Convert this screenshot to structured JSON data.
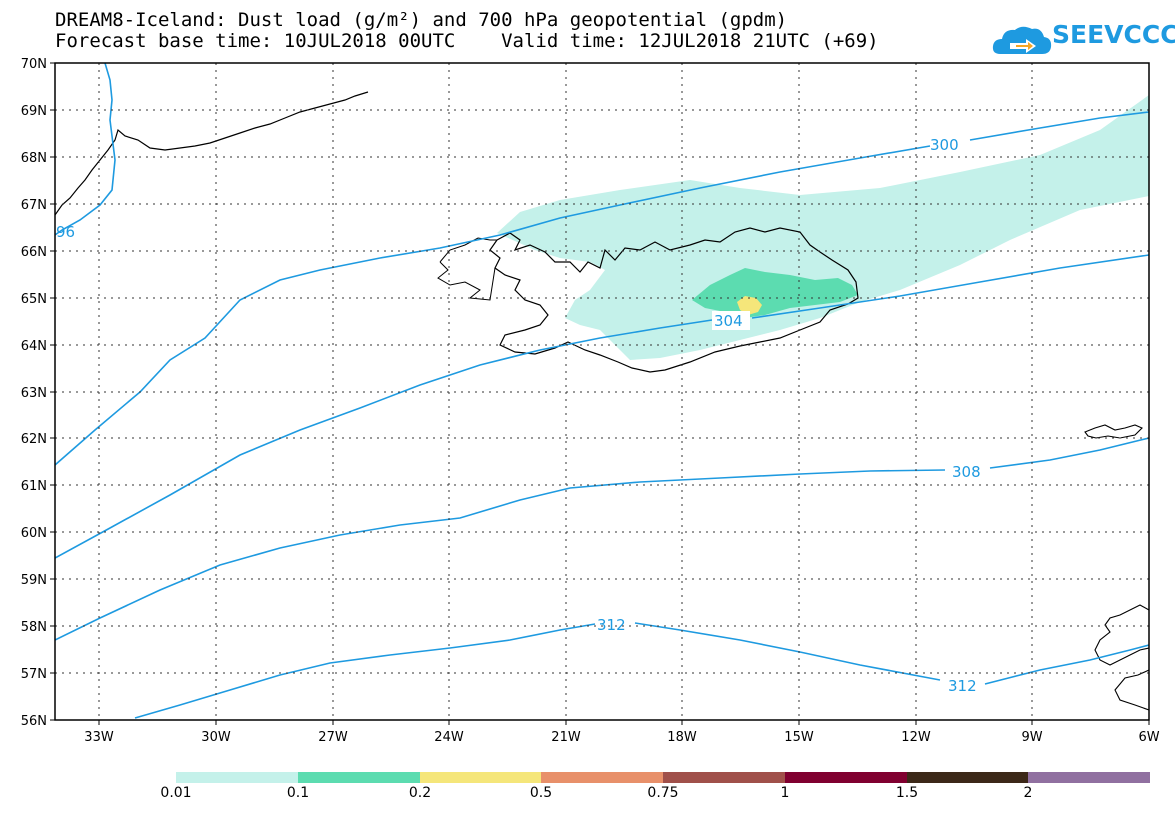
{
  "header": {
    "title_line1": "DREAM8-Iceland: Dust load (g/m²) and 700 hPa geopotential (gpdm)",
    "title_line2": "Forecast base time: 10JUL2018 00UTC    Valid time: 12JUL2018 21UTC (+69)"
  },
  "logo": {
    "text": "SEEVCCC",
    "icon": "cloud-arrow-icon",
    "color": "#1e9ae0"
  },
  "map": {
    "lat_labels": [
      "70N",
      "69N",
      "68N",
      "67N",
      "66N",
      "65N",
      "64N",
      "63N",
      "62N",
      "61N",
      "60N",
      "59N",
      "58N",
      "57N",
      "56N"
    ],
    "lon_labels": [
      "33W",
      "30W",
      "27W",
      "24W",
      "21W",
      "18W",
      "15W",
      "12W",
      "9W",
      "6W"
    ],
    "contour_labels": {
      "c296": "96",
      "c300": "300",
      "c304": "304",
      "c308": "308",
      "c312a": "312",
      "c312b": "312"
    },
    "contour_color": "#1e9ae0",
    "grid": true
  },
  "legend": {
    "colors": [
      "#c4f1ea",
      "#5cdcb0",
      "#f5e67a",
      "#e8906a",
      "#a0504a",
      "#800030",
      "#3c2818",
      "#9070a0"
    ],
    "labels": [
      "0.01",
      "0.1",
      "0.2",
      "0.5",
      "0.75",
      "1",
      "1.5",
      "2"
    ]
  }
}
